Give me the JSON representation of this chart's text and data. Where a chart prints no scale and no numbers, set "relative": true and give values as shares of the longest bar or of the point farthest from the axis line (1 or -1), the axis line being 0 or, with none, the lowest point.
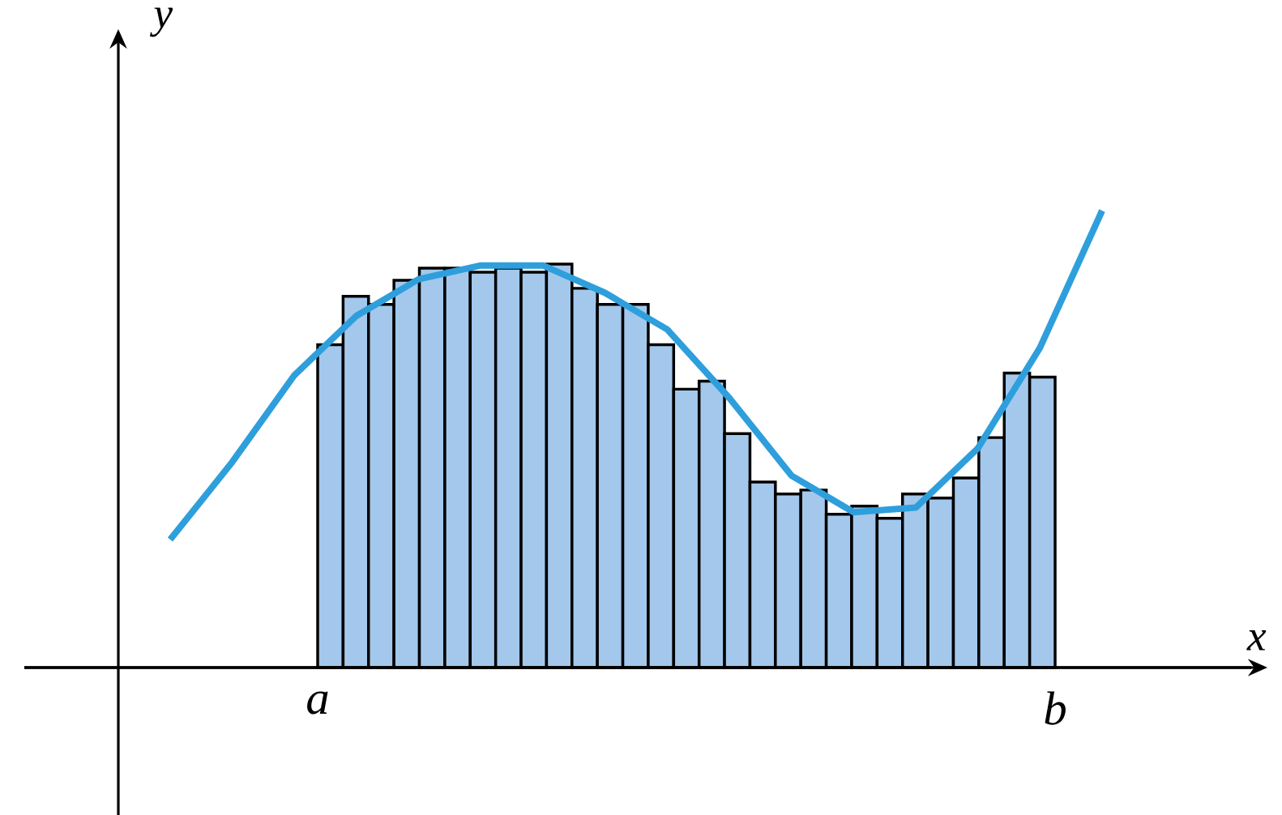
{
  "chart_data": [
    {
      "type": "bar",
      "relative": true,
      "xlabel": "x",
      "ylabel": "y",
      "color": "#a3c8ec",
      "categories": [
        null,
        null,
        null,
        null,
        null,
        null,
        null,
        null,
        null,
        null,
        null,
        null,
        null,
        null,
        null,
        null,
        null,
        null,
        null,
        null,
        null,
        null,
        null,
        null,
        null,
        null,
        null,
        null,
        null
      ],
      "values": [
        0.8,
        0.92,
        0.9,
        0.96,
        0.99,
        0.99,
        0.98,
        0.99,
        0.98,
        1.0,
        0.94,
        0.9,
        0.9,
        0.8,
        0.69,
        0.71,
        0.58,
        0.46,
        0.43,
        0.44,
        0.38,
        0.4,
        0.37,
        0.43,
        0.42,
        0.47,
        0.57,
        0.73,
        0.72
      ],
      "annotations": [
        "a",
        "b"
      ]
    },
    {
      "type": "line",
      "relative": true,
      "color": "#2e9fdc",
      "categories": [
        null,
        null,
        null,
        null,
        null,
        null,
        null,
        null,
        null,
        null,
        null,
        null,
        null,
        null,
        null,
        null
      ],
      "values": [
        0.28,
        0.45,
        0.64,
        0.77,
        0.85,
        0.88,
        0.88,
        0.82,
        0.74,
        0.59,
        0.42,
        0.34,
        0.35,
        0.48,
        0.7,
        1.0
      ]
    }
  ]
}
